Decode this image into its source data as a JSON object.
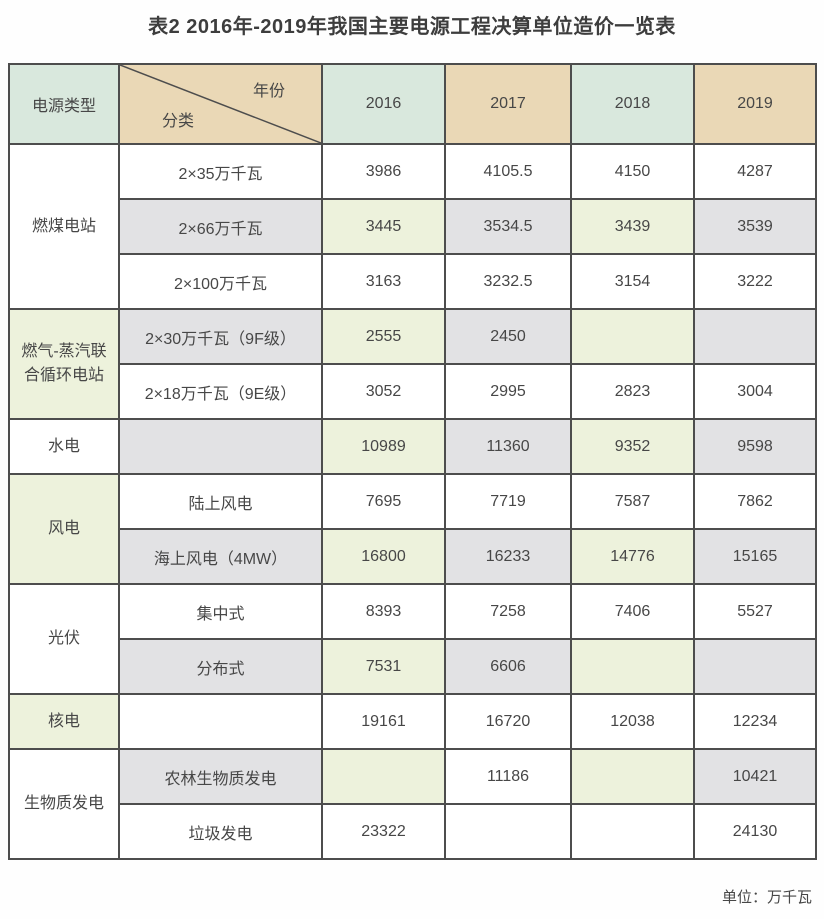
{
  "title": "表2 2016年-2019年我国主要电源工程决算单位造价一览表",
  "header": {
    "power_type_label": "电源类型",
    "diagonal": {
      "top_right": "年份",
      "bottom_left": "分类"
    },
    "years": [
      "2016",
      "2017",
      "2018",
      "2019"
    ]
  },
  "footer": {
    "unit_label": "单位：万千瓦"
  },
  "palette": {
    "mint": "#d9e8dd",
    "tan": "#ead8b6",
    "green": "#edf2dc",
    "gray": "#e2e2e4",
    "white": "#ffffff",
    "border": "#4d4d4d",
    "text": "#474747",
    "title": "#3d3d3d"
  },
  "chart_data": {
    "type": "table",
    "title": "表2 2016年-2019年我国主要电源工程决算单位造价一览表",
    "unit_note": "单位：万千瓦",
    "corner": {
      "group_header": "电源类型",
      "col_axis_label": "年份",
      "row_axis_label": "分类"
    },
    "columns": [
      "2016",
      "2017",
      "2018",
      "2019"
    ],
    "groups": [
      {
        "name": "燃煤电站",
        "label_shade": "white",
        "rows": [
          {
            "category": "2×35万千瓦",
            "values": [
              "3986",
              "4105.5",
              "4150",
              "4287"
            ],
            "shades": [
              "white",
              "white",
              "white",
              "white",
              "white"
            ]
          },
          {
            "category": "2×66万千瓦",
            "values": [
              "3445",
              "3534.5",
              "3439",
              "3539"
            ],
            "shades": [
              "gray",
              "green",
              "gray",
              "green",
              "gray"
            ]
          },
          {
            "category": "2×100万千瓦",
            "values": [
              "3163",
              "3232.5",
              "3154",
              "3222"
            ],
            "shades": [
              "white",
              "white",
              "white",
              "white",
              "white"
            ]
          }
        ]
      },
      {
        "name": "燃气-蒸汽联合循环电站",
        "label_shade": "green",
        "rows": [
          {
            "category": "2×30万千瓦（9F级）",
            "values": [
              "2555",
              "2450",
              "",
              ""
            ],
            "shades": [
              "gray",
              "green",
              "gray",
              "green",
              "gray"
            ]
          },
          {
            "category": "2×18万千瓦（9E级）",
            "values": [
              "3052",
              "2995",
              "2823",
              "3004"
            ],
            "shades": [
              "white",
              "white",
              "white",
              "white",
              "white"
            ]
          }
        ]
      },
      {
        "name": "水电",
        "label_shade": "white",
        "rows": [
          {
            "category": "",
            "values": [
              "10989",
              "11360",
              "9352",
              "9598"
            ],
            "shades": [
              "gray",
              "green",
              "gray",
              "green",
              "gray"
            ]
          }
        ]
      },
      {
        "name": "风电",
        "label_shade": "green",
        "rows": [
          {
            "category": "陆上风电",
            "values": [
              "7695",
              "7719",
              "7587",
              "7862"
            ],
            "shades": [
              "white",
              "white",
              "white",
              "white",
              "white"
            ]
          },
          {
            "category": "海上风电（4MW）",
            "values": [
              "16800",
              "16233",
              "14776",
              "15165"
            ],
            "shades": [
              "gray",
              "green",
              "gray",
              "green",
              "gray"
            ]
          }
        ]
      },
      {
        "name": "光伏",
        "label_shade": "white",
        "rows": [
          {
            "category": "集中式",
            "values": [
              "8393",
              "7258",
              "7406",
              "5527"
            ],
            "shades": [
              "white",
              "white",
              "white",
              "white",
              "white"
            ]
          },
          {
            "category": "分布式",
            "values": [
              "7531",
              "6606",
              "",
              ""
            ],
            "shades": [
              "gray",
              "green",
              "gray",
              "green",
              "gray"
            ]
          }
        ]
      },
      {
        "name": "核电",
        "label_shade": "green",
        "rows": [
          {
            "category": "",
            "values": [
              "19161",
              "16720",
              "12038",
              "12234"
            ],
            "shades": [
              "white",
              "white",
              "white",
              "white",
              "white"
            ]
          }
        ]
      },
      {
        "name": "生物质发电",
        "label_shade": "white",
        "rows": [
          {
            "category": "农林生物质发电",
            "values": [
              "",
              "11186",
              "",
              "10421"
            ],
            "shades": [
              "gray",
              "green",
              "white",
              "green",
              "gray"
            ]
          },
          {
            "category": "垃圾发电",
            "values": [
              "23322",
              "",
              "",
              "24130"
            ],
            "shades": [
              "white",
              "white",
              "white",
              "white",
              "white"
            ]
          }
        ]
      }
    ]
  }
}
